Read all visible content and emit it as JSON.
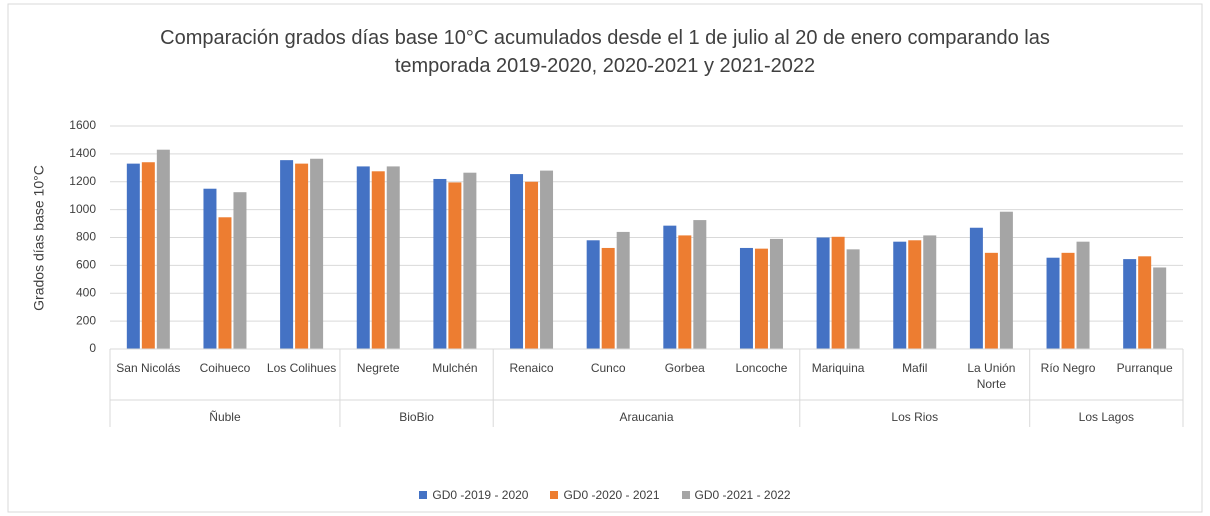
{
  "chart_data": {
    "type": "bar",
    "title": "Comparación grados días base 10°C acumulados desde el 1 de julio al 20 de enero comparando las temporada 2019-2020, 2020-2021 y 2021-2022",
    "y_label": "Grados  días base 10°C",
    "groups": [
      {
        "label": "Ñuble",
        "categories": [
          "San Nicolás",
          "Coihueco",
          "Los Colihues"
        ]
      },
      {
        "label": "BioBio",
        "categories": [
          "Negrete",
          "Mulchén"
        ]
      },
      {
        "label": "Araucania",
        "categories": [
          "Renaico",
          "Cunco",
          "Gorbea",
          "Loncoche"
        ]
      },
      {
        "label": "Los Rios",
        "categories": [
          "Mariquina",
          "Mafil",
          "La Unión Norte"
        ]
      },
      {
        "label": "Los Lagos",
        "categories": [
          "Río Negro",
          "Purranque"
        ]
      }
    ],
    "series": [
      {
        "name": "GD0 -2019 - 2020",
        "color": "#4472c4",
        "values": [
          1330,
          1150,
          1355,
          1310,
          1220,
          1255,
          780,
          885,
          725,
          800,
          770,
          870,
          655,
          645
        ]
      },
      {
        "name": "GD0 -2020 - 2021",
        "color": "#ed7d31",
        "values": [
          1340,
          945,
          1330,
          1275,
          1195,
          1200,
          725,
          815,
          720,
          805,
          780,
          690,
          690,
          665
        ]
      },
      {
        "name": "GD0 -2021 - 2022",
        "color": "#a5a5a5",
        "values": [
          1430,
          1125,
          1365,
          1310,
          1265,
          1280,
          840,
          925,
          790,
          715,
          815,
          985,
          770,
          585
        ]
      }
    ],
    "ylim": [
      0,
      1600
    ],
    "yticks": [
      0,
      200,
      400,
      600,
      800,
      1000,
      1200,
      1400,
      1600
    ],
    "grid": true
  }
}
